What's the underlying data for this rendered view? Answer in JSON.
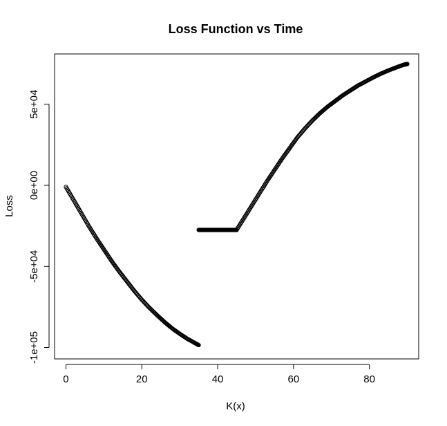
{
  "chart_data": {
    "type": "scatter",
    "title": "Loss Function vs Time",
    "xlabel": "K(x)",
    "ylabel": "Loss",
    "xlim": [
      -3,
      93
    ],
    "ylim": [
      -107000,
      81000
    ],
    "x_ticks": [
      0,
      20,
      40,
      60,
      80
    ],
    "x_tick_labels": [
      "0",
      "20",
      "40",
      "60",
      "80"
    ],
    "y_ticks": [
      -100000,
      -50000,
      0,
      50000
    ],
    "y_tick_labels": [
      "-1e+05",
      "-5e+04",
      "0e+00",
      "5e+04"
    ],
    "grid": false,
    "legend": "none",
    "marker": "open-circle",
    "point_color": "#000000",
    "series": [
      {
        "segment": "decreasing",
        "x": [
          0,
          2,
          4,
          6,
          8,
          10,
          12,
          14,
          16,
          18,
          20,
          22,
          24,
          26,
          28,
          30,
          32,
          34,
          35
        ],
        "y": [
          -1000,
          -9000,
          -17000,
          -25000,
          -32500,
          -39500,
          -46500,
          -53000,
          -59000,
          -65000,
          -70500,
          -75500,
          -80000,
          -84300,
          -88200,
          -91500,
          -94600,
          -97200,
          -98500
        ]
      },
      {
        "segment": "flat",
        "x": [
          35,
          36,
          37,
          38,
          39,
          40,
          41,
          42,
          43,
          44,
          45
        ],
        "y": [
          -27500,
          -27500,
          -27500,
          -27500,
          -27500,
          -27500,
          -27500,
          -27500,
          -27500,
          -27500,
          -27500
        ]
      },
      {
        "segment": "increasing",
        "x": [
          45,
          47,
          49,
          51,
          53,
          55,
          57,
          59,
          61,
          63,
          65,
          67,
          69,
          71,
          73,
          75,
          77,
          79,
          81,
          83,
          85,
          87,
          89,
          90
        ],
        "y": [
          -27500,
          -20000,
          -12500,
          -5000,
          2500,
          9500,
          16500,
          23000,
          29500,
          35000,
          40000,
          44500,
          48500,
          52000,
          55500,
          58500,
          61500,
          64000,
          66500,
          68800,
          70800,
          72600,
          74300,
          74800
        ]
      }
    ]
  }
}
